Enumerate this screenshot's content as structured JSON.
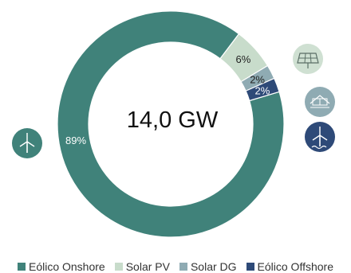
{
  "chart_data": {
    "type": "pie",
    "title": "",
    "center_label": "14,0 GW",
    "series": [
      {
        "name": "Eólico Onshore",
        "value": 89,
        "label": "89%",
        "color": "#40827a",
        "icon": "wind-turbine-icon"
      },
      {
        "name": "Solar PV",
        "value": 6,
        "label": "6%",
        "color": "#c8dccb",
        "icon": "solar-panel-icon"
      },
      {
        "name": "Solar DG",
        "value": 2,
        "label": "2%",
        "color": "#8fabb3",
        "icon": "rooftop-solar-icon"
      },
      {
        "name": "Eólico Offshore",
        "value": 2,
        "label": "2%",
        "color": "#2e4a78",
        "icon": "offshore-wind-icon"
      }
    ],
    "legend_position": "bottom",
    "hole": "donut"
  }
}
